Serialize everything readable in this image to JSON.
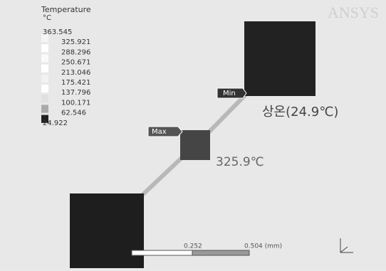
{
  "legend": {
    "title": "Temperature",
    "unit": "°C",
    "labels": [
      "363.545",
      "325.921",
      "288.296",
      "250.671",
      "213.046",
      "175.421",
      "137.796",
      "100.171",
      "62.546",
      "24.922"
    ]
  },
  "logo": "ANSYS",
  "probes": {
    "min": "Min",
    "max": "Max"
  },
  "annotations": {
    "ambient": "상온(24.9℃)",
    "peak": "325.9℃"
  },
  "scale_bar": {
    "mid": "0.252",
    "end": "0.504 (mm)"
  }
}
